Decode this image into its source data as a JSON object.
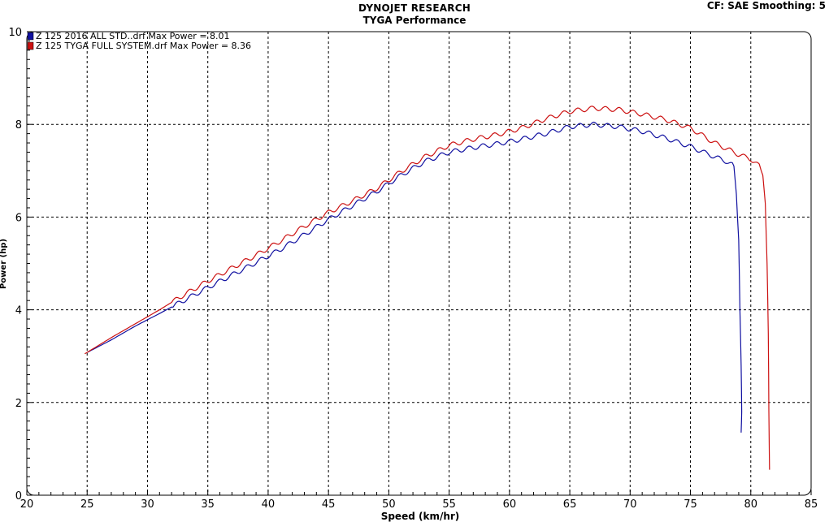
{
  "header": {
    "title": "DYNOJET RESEARCH",
    "subtitle": "TYGA Performance",
    "cf_info": "CF: SAE  Smoothing: 5"
  },
  "chart_data": {
    "type": "line",
    "xlabel": "Speed (km/hr)",
    "ylabel": "Power (hp)",
    "xlim": [
      20,
      85
    ],
    "ylim": [
      0,
      10
    ],
    "x_ticks": [
      20,
      25,
      30,
      35,
      40,
      45,
      50,
      55,
      60,
      65,
      70,
      75,
      80,
      85
    ],
    "y_ticks": [
      0,
      2,
      4,
      6,
      8,
      10
    ],
    "grid": true,
    "legend_position": "top-left",
    "series": [
      {
        "name": "Z 125 2016 ALL STD..drf Max Power = 8.01",
        "color": "#1010a0",
        "x": [
          25,
          27,
          29,
          31,
          33,
          35,
          37,
          39,
          41,
          43,
          45,
          47,
          49,
          51,
          53,
          55,
          57,
          59,
          61,
          63,
          65,
          67,
          69,
          71,
          73,
          75,
          77,
          78,
          78.6,
          78.8,
          79.0,
          79.1,
          79.2,
          79.25,
          79.2
        ],
        "values": [
          3.08,
          3.35,
          3.65,
          3.92,
          4.2,
          4.48,
          4.75,
          5.02,
          5.3,
          5.62,
          5.95,
          6.25,
          6.55,
          6.9,
          7.2,
          7.4,
          7.5,
          7.58,
          7.68,
          7.8,
          7.95,
          8.0,
          7.95,
          7.85,
          7.7,
          7.52,
          7.3,
          7.2,
          7.1,
          6.5,
          5.5,
          4.0,
          2.8,
          1.8,
          1.35
        ]
      },
      {
        "name": "Z 125 TYGA FULL SYSTEM.drf Max Power = 8.36",
        "color": "#cc1111",
        "x": [
          24.8,
          27,
          29,
          31,
          33,
          35,
          37,
          39,
          41,
          43,
          45,
          47,
          49,
          51,
          53,
          55,
          57,
          59,
          61,
          63,
          65,
          67,
          69,
          71,
          73,
          75,
          77,
          79,
          80,
          80.7,
          81.0,
          81.2,
          81.35,
          81.45,
          81.5,
          81.55
        ],
        "values": [
          3.05,
          3.4,
          3.7,
          4.0,
          4.32,
          4.62,
          4.9,
          5.18,
          5.48,
          5.8,
          6.1,
          6.35,
          6.62,
          6.98,
          7.3,
          7.55,
          7.68,
          7.78,
          7.92,
          8.12,
          8.28,
          8.35,
          8.32,
          8.22,
          8.1,
          7.92,
          7.6,
          7.35,
          7.25,
          7.1,
          6.9,
          6.3,
          5.0,
          3.5,
          1.8,
          0.55
        ]
      }
    ]
  }
}
